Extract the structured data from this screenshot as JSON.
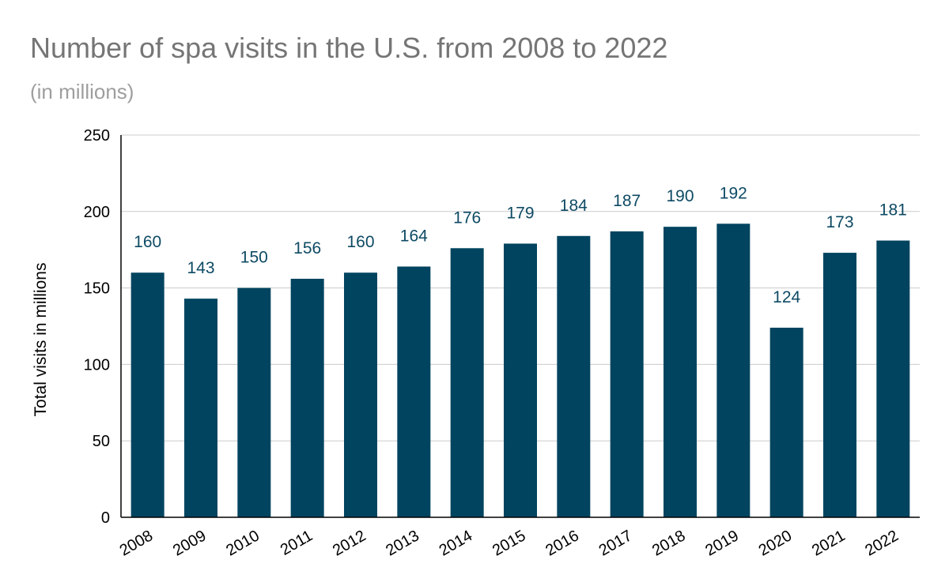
{
  "chart_data": {
    "type": "bar",
    "title": "Number of spa visits in the U.S. from 2008 to 2022",
    "subtitle": "(in millions)",
    "xlabel": "",
    "ylabel": "Total visits in millions",
    "ylim": [
      0,
      250
    ],
    "yticks": [
      0,
      50,
      100,
      150,
      200,
      250
    ],
    "grid": true,
    "legend": "none",
    "categories": [
      "2008",
      "2009",
      "2010",
      "2011",
      "2012",
      "2013",
      "2014",
      "2015",
      "2016",
      "2017",
      "2018",
      "2019",
      "2020",
      "2021",
      "2022"
    ],
    "values": [
      160,
      143,
      150,
      156,
      160,
      164,
      176,
      179,
      184,
      187,
      190,
      192,
      124,
      173,
      181
    ],
    "bar_color": "#01445f",
    "data_label_color": "#0e4a64"
  }
}
